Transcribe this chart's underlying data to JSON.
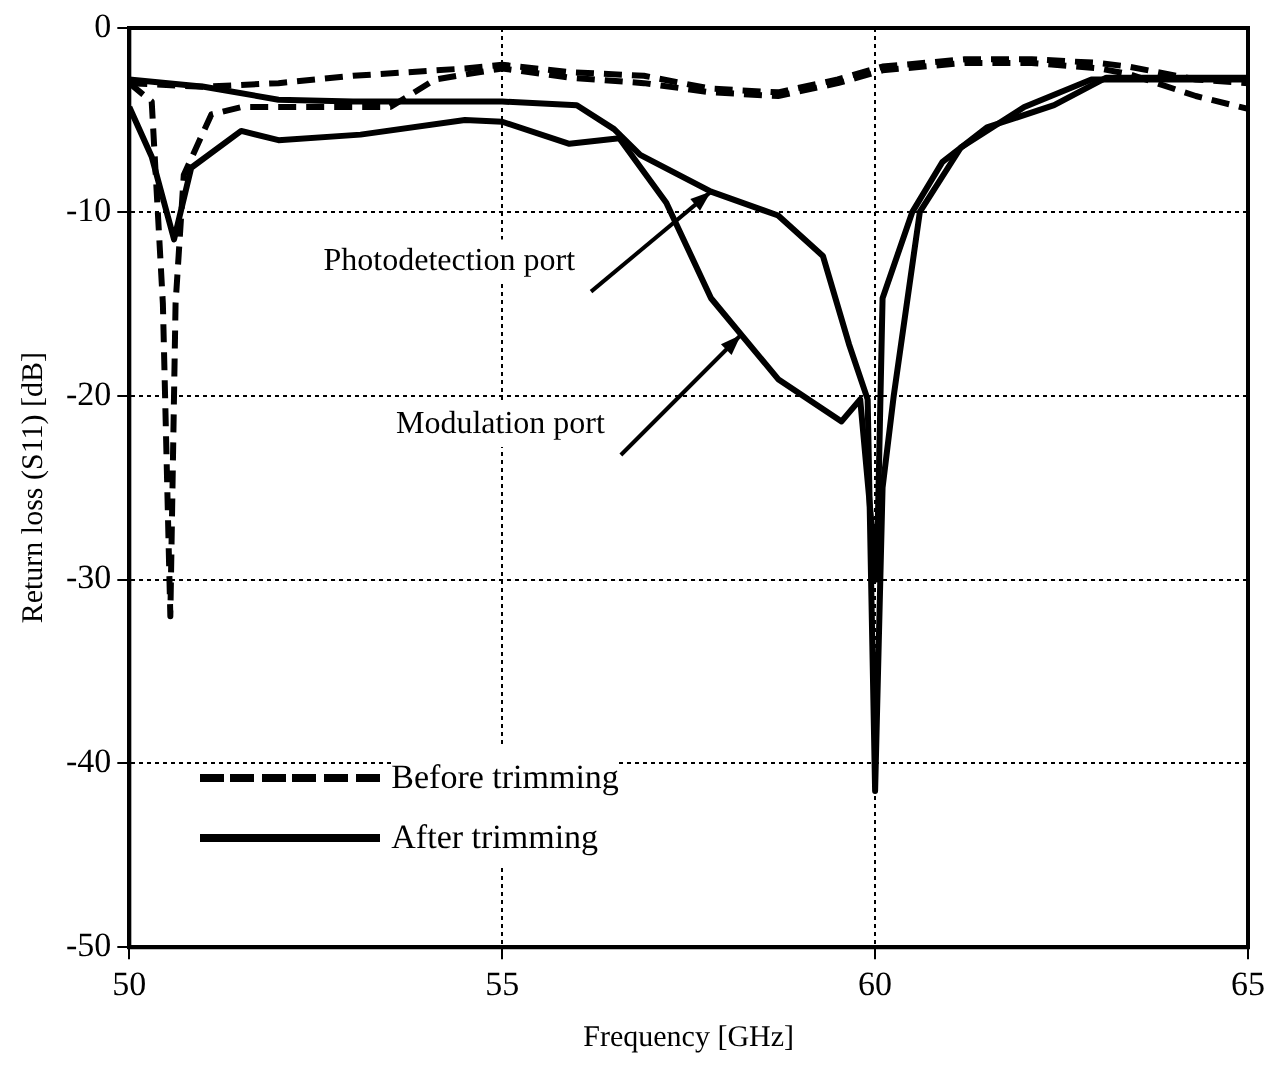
{
  "chart_data": {
    "type": "line",
    "xlabel": "Frequency [GHz]",
    "ylabel": "Return loss (S11) [dB]",
    "xlim": [
      50,
      65
    ],
    "xticks": [
      50,
      55,
      60,
      65
    ],
    "ylim": [
      -50,
      0
    ],
    "yticks": [
      -50,
      -40,
      -30,
      -20,
      -10,
      0
    ],
    "grid": true,
    "legend": "bottom left",
    "marker": "none",
    "annotations": [
      {
        "text": "Photodetection port",
        "x": 57.8,
        "y": -8.9
      },
      {
        "text": "Modulation port",
        "x": 58.2,
        "y": -16.7
      }
    ],
    "series": [
      {
        "name": "Before trimming",
        "color": "#000000",
        "line_style": "dashed",
        "x": [
          50,
          50.3,
          50.45,
          50.55,
          50.62,
          50.73,
          51.1,
          51.5,
          52.5,
          53.5,
          54.1,
          55,
          55.9,
          56.9,
          57.8,
          58.7,
          59.5,
          60.1,
          61.2,
          62.1,
          63,
          63.4,
          64.3,
          65
        ],
        "values": [
          -3,
          -4,
          -15,
          -32,
          -15,
          -8,
          -4.7,
          -4.3,
          -4.3,
          -4.3,
          -2.8,
          -2.2,
          -2.7,
          -3,
          -3.5,
          -3.7,
          -3,
          -2.3,
          -1.9,
          -1.9,
          -2.2,
          -2.5,
          -3.7,
          -4.4
        ]
      },
      {
        "color": "#000000",
        "line_style": "dashed",
        "x": [
          50,
          51,
          52,
          53,
          54.5,
          55,
          55.9,
          56.9,
          57.8,
          58.7,
          59.5,
          60.1,
          61.2,
          62.1,
          63,
          63.4,
          64.3,
          65
        ],
        "values": [
          -3,
          -3.2,
          -3,
          -2.6,
          -2.2,
          -2,
          -2.4,
          -2.6,
          -3.3,
          -3.5,
          -2.8,
          -2.1,
          -1.7,
          -1.7,
          -1.9,
          -2.1,
          -2.8,
          -3
        ]
      },
      {
        "name": "After trimming",
        "color": "#000000",
        "line_style": "solid",
        "x": [
          50,
          51,
          52,
          53,
          54,
          55,
          56,
          56.5,
          56.85,
          57.8,
          58.7,
          59.3,
          59.65,
          59.9,
          60,
          60.1,
          60.25,
          60.6,
          61.15,
          62,
          62.9,
          64,
          65
        ],
        "values": [
          -2.8,
          -3.2,
          -3.9,
          -4,
          -4,
          -4,
          -4.2,
          -5.5,
          -6.9,
          -8.9,
          -10.2,
          -12.4,
          -17.2,
          -20.2,
          -41.5,
          -25,
          -20,
          -10,
          -6.5,
          -4.3,
          -2.8,
          -2.8,
          -2.8
        ]
      },
      {
        "color": "#000000",
        "line_style": "solid",
        "x": [
          50,
          50.3,
          50.6,
          50.83,
          51.5,
          52,
          53.1,
          54.5,
          55,
          55.9,
          56.57,
          57.2,
          57.8,
          58.7,
          59.55,
          59.8,
          60.02,
          60.1,
          60.5,
          60.9,
          61.5,
          62.4,
          63.1,
          64,
          65
        ],
        "values": [
          -4.3,
          -7,
          -11.5,
          -7.6,
          -5.6,
          -6.1,
          -5.8,
          -5,
          -5.1,
          -6.3,
          -6,
          -9.5,
          -14.7,
          -19.1,
          -21.4,
          -20.2,
          -30,
          -14.7,
          -10,
          -7.3,
          -5.4,
          -4.2,
          -2.7,
          -2.7,
          -2.7
        ]
      }
    ]
  }
}
